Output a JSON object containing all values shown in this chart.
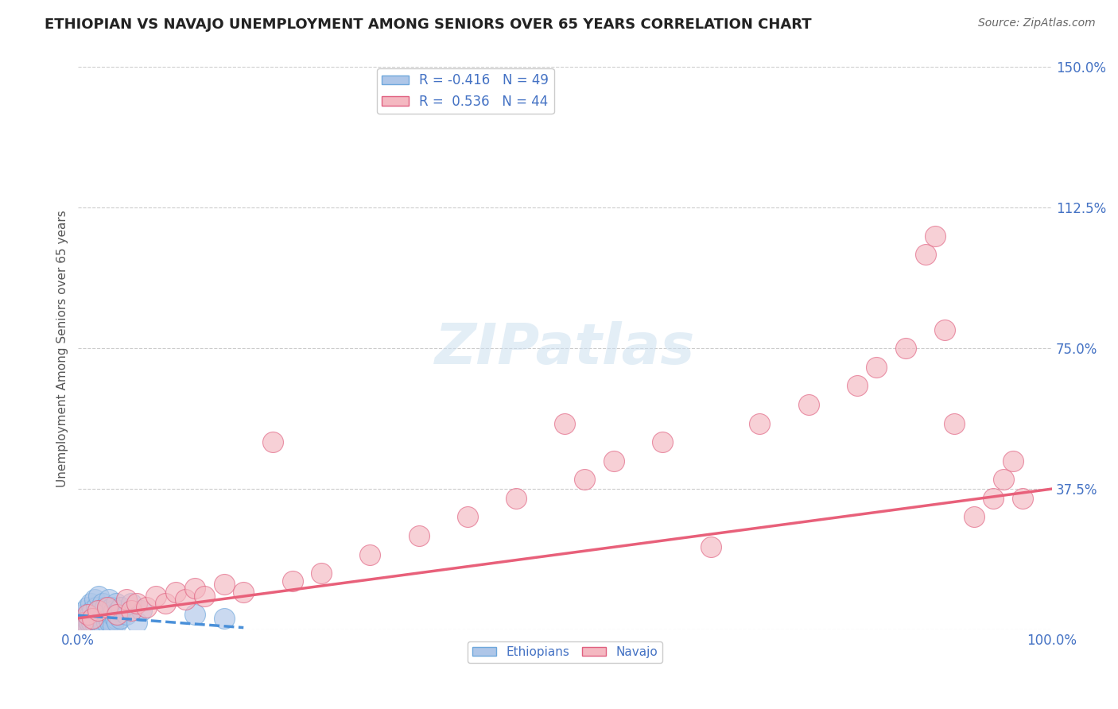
{
  "title": "ETHIOPIAN VS NAVAJO UNEMPLOYMENT AMONG SENIORS OVER 65 YEARS CORRELATION CHART",
  "source": "Source: ZipAtlas.com",
  "ylabel": "Unemployment Among Seniors over 65 years",
  "xlim": [
    0.0,
    1.0
  ],
  "ylim": [
    0.0,
    1.5
  ],
  "xticks": [
    0.0,
    1.0
  ],
  "xtick_labels": [
    "0.0%",
    "100.0%"
  ],
  "yticks": [
    0.0,
    0.375,
    0.75,
    1.125,
    1.5
  ],
  "ytick_labels": [
    "",
    "37.5%",
    "75.0%",
    "112.5%",
    "150.0%"
  ],
  "top_legend_entries": [
    {
      "label": "R = -0.416   N = 49",
      "color": "#aec6e8",
      "edge": "#6fa8dc"
    },
    {
      "label": "R =  0.536   N = 44",
      "color": "#f4b8c1",
      "edge": "#e06080"
    }
  ],
  "bottom_legend_entries": [
    {
      "label": "Ethiopians",
      "color": "#aec6e8",
      "edge": "#6fa8dc"
    },
    {
      "label": "Navajo",
      "color": "#f4b8c1",
      "edge": "#e06080"
    }
  ],
  "background_color": "#ffffff",
  "grid_color": "#cccccc",
  "watermark": "ZIPatlas",
  "ethiopian_color": "#aec6e8",
  "ethiopian_edge_color": "#6fa8dc",
  "navajo_color": "#f4b8c1",
  "navajo_edge_color": "#e06080",
  "trend_ethiopian_color": "#4a90d9",
  "trend_navajo_color": "#e8607a",
  "label_color": "#4472c4",
  "title_color": "#222222",
  "source_color": "#666666",
  "ylabel_color": "#555555",
  "ethiopian_points_x": [
    0.002,
    0.003,
    0.004,
    0.005,
    0.006,
    0.007,
    0.008,
    0.009,
    0.01,
    0.011,
    0.012,
    0.013,
    0.014,
    0.015,
    0.016,
    0.017,
    0.018,
    0.019,
    0.02,
    0.021,
    0.022,
    0.023,
    0.024,
    0.025,
    0.026,
    0.027,
    0.028,
    0.029,
    0.03,
    0.031,
    0.032,
    0.033,
    0.034,
    0.035,
    0.036,
    0.037,
    0.038,
    0.039,
    0.04,
    0.041,
    0.042,
    0.043,
    0.044,
    0.05,
    0.055,
    0.06,
    0.065,
    0.12,
    0.15
  ],
  "ethiopian_points_y": [
    0.02,
    0.03,
    0.01,
    0.04,
    0.02,
    0.05,
    0.03,
    0.01,
    0.06,
    0.02,
    0.04,
    0.07,
    0.02,
    0.05,
    0.03,
    0.08,
    0.01,
    0.06,
    0.04,
    0.09,
    0.02,
    0.05,
    0.03,
    0.07,
    0.01,
    0.04,
    0.06,
    0.02,
    0.05,
    0.03,
    0.08,
    0.02,
    0.04,
    0.06,
    0.01,
    0.05,
    0.03,
    0.07,
    0.02,
    0.04,
    0.05,
    0.03,
    0.06,
    0.04,
    0.07,
    0.02,
    0.05,
    0.04,
    0.03
  ],
  "navajo_points_x": [
    0.005,
    0.01,
    0.015,
    0.02,
    0.03,
    0.04,
    0.05,
    0.055,
    0.06,
    0.07,
    0.08,
    0.09,
    0.1,
    0.11,
    0.12,
    0.13,
    0.15,
    0.17,
    0.2,
    0.22,
    0.25,
    0.3,
    0.35,
    0.4,
    0.45,
    0.5,
    0.52,
    0.55,
    0.6,
    0.65,
    0.7,
    0.75,
    0.8,
    0.82,
    0.85,
    0.87,
    0.88,
    0.89,
    0.9,
    0.92,
    0.94,
    0.95,
    0.96,
    0.97
  ],
  "navajo_points_y": [
    0.02,
    0.04,
    0.03,
    0.05,
    0.06,
    0.04,
    0.08,
    0.05,
    0.07,
    0.06,
    0.09,
    0.07,
    0.1,
    0.08,
    0.11,
    0.09,
    0.12,
    0.1,
    0.5,
    0.13,
    0.15,
    0.2,
    0.25,
    0.3,
    0.35,
    0.55,
    0.4,
    0.45,
    0.5,
    0.22,
    0.55,
    0.6,
    0.65,
    0.7,
    0.75,
    1.0,
    1.05,
    0.8,
    0.55,
    0.3,
    0.35,
    0.4,
    0.45,
    0.35
  ],
  "eth_trend_x": [
    0.0,
    0.17
  ],
  "eth_trend_y": [
    0.038,
    0.005
  ],
  "nav_trend_x": [
    0.0,
    1.0
  ],
  "nav_trend_y": [
    0.03,
    0.375
  ]
}
